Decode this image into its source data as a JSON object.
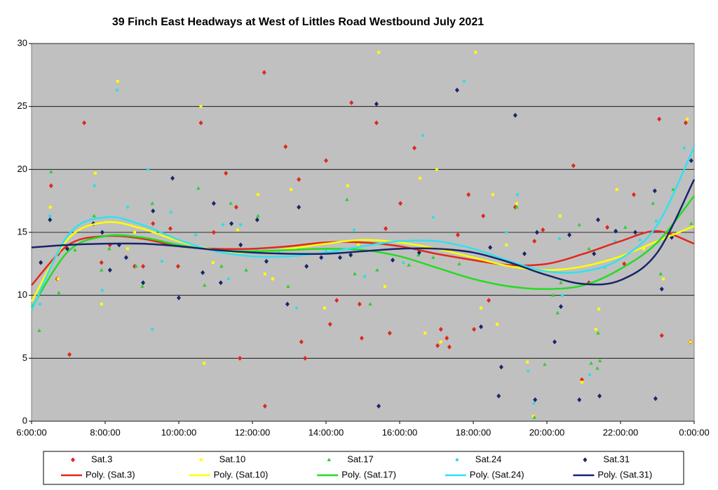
{
  "chart_data": {
    "type": "scatter",
    "title": "39 Finch East Headways at West of Littles Road Westbound July 2021",
    "xlim": [
      6,
      24
    ],
    "xticks": [
      {
        "value": 6,
        "label": "6:00:00"
      },
      {
        "value": 8,
        "label": "8:00:00"
      },
      {
        "value": 10,
        "label": "10:00:00"
      },
      {
        "value": 12,
        "label": "12:00:00"
      },
      {
        "value": 14,
        "label": "14:00:00"
      },
      {
        "value": 16,
        "label": "16:00:00"
      },
      {
        "value": 18,
        "label": "18:00:00"
      },
      {
        "value": 20,
        "label": "20:00:00"
      },
      {
        "value": 22,
        "label": "22:00:00"
      },
      {
        "value": 24,
        "label": "0:00:00"
      }
    ],
    "ylim": [
      0,
      30
    ],
    "yticks": [
      0,
      5,
      10,
      15,
      20,
      25,
      30
    ],
    "grid": true,
    "legend": "bottom",
    "series": [
      {
        "name": "Sat.3",
        "color": "#e3261c",
        "marker": "diamond",
        "x": [
          6.53,
          6.7,
          7.03,
          7.43,
          7.9,
          8.13,
          8.8,
          9.03,
          9.3,
          9.77,
          9.98,
          10.6,
          10.95,
          11.28,
          11.66,
          11.56,
          12.32,
          12.34,
          12.9,
          13.26,
          13.33,
          13.43,
          14,
          14.11,
          14.29,
          14.69,
          14.91,
          14.97,
          15.37,
          15.62,
          15.73,
          16.02,
          16.4,
          17.03,
          17.12,
          17.28,
          17.35,
          17.58,
          17.87,
          18.02,
          18.27,
          18.42,
          19.14,
          19.66,
          19.89,
          20.72,
          20.95,
          21.14,
          21.64,
          22.1,
          22.36,
          23.05,
          23.12,
          23.77,
          23.9
        ],
        "values": [
          18.7,
          11.3,
          5.3,
          23.7,
          12.6,
          14,
          12.3,
          12.3,
          15.7,
          15.3,
          12.3,
          23.7,
          15,
          19.7,
          5,
          17,
          27.7,
          1.2,
          21.8,
          19.2,
          6.3,
          5,
          20.7,
          7.7,
          9.6,
          25.3,
          9.3,
          6.6,
          23.7,
          15.3,
          7,
          17.3,
          21.7,
          6,
          7.3,
          6.6,
          5.9,
          14.8,
          18,
          7.3,
          16.3,
          9.6,
          17,
          14.3,
          15.2,
          20.3,
          3.3,
          11,
          15.4,
          12.5,
          18,
          24,
          6.8,
          23.7,
          6.3
        ]
      },
      {
        "name": "Sat.10",
        "color": "#ffff00",
        "marker": "square",
        "x": [
          6.51,
          6.72,
          7.73,
          7.9,
          8.34,
          8.61,
          8.8,
          10.6,
          10.69,
          10.93,
          11.6,
          12.15,
          12.34,
          12.55,
          13.05,
          13.96,
          14.59,
          14.88,
          15.43,
          15.6,
          16.55,
          16.69,
          17.01,
          17.12,
          18.06,
          18.21,
          18.53,
          18.65,
          18.9,
          19.18,
          19.47,
          19.64,
          20.36,
          20.95,
          21.33,
          21.41,
          21.9,
          22.63,
          23.16,
          23.81,
          23.9
        ],
        "values": [
          17,
          11.3,
          19.7,
          9.3,
          27,
          13.7,
          15,
          25,
          4.6,
          12.6,
          15.2,
          18,
          11.7,
          11.3,
          18.4,
          9,
          18.7,
          14,
          29.3,
          10.7,
          19.3,
          7,
          20,
          6.3,
          29.3,
          9,
          18,
          7.7,
          14,
          17.3,
          4.7,
          0.4,
          16.3,
          3.1,
          7.3,
          8.9,
          18.4,
          13.7,
          11.3,
          24,
          6.3
        ]
      },
      {
        "name": "Sat.17",
        "color": "#33cc33",
        "marker": "triangle",
        "x": [
          6.21,
          6.53,
          6.74,
          7.18,
          7.7,
          7.9,
          8.11,
          8.84,
          9.01,
          9.28,
          10.53,
          10.7,
          11.16,
          11.41,
          11.83,
          12.15,
          12.97,
          13.26,
          14.57,
          14.78,
          15.2,
          15.39,
          16.25,
          16.51,
          16.91,
          17.62,
          19.18,
          19.66,
          19.94,
          20.17,
          20.29,
          20.38,
          20.88,
          21.14,
          21.2,
          21.37,
          21.39,
          21.44,
          22.13,
          22.88,
          23.09,
          23.43,
          23.92
        ],
        "values": [
          7.2,
          19.8,
          10.2,
          13.6,
          16.3,
          12,
          13.7,
          12.3,
          10.7,
          17.3,
          18.5,
          10.8,
          12.3,
          17.3,
          12,
          16.3,
          10.7,
          13.7,
          17.6,
          11.7,
          9.3,
          12,
          12.4,
          13.2,
          13,
          12.5,
          17,
          0.3,
          4.5,
          10,
          8.6,
          11,
          15.6,
          13.7,
          4.6,
          4.2,
          7,
          4.8,
          15.4,
          17.3,
          11.7,
          18.4,
          15.7
        ]
      },
      {
        "name": "Sat.24",
        "color": "#33dddd",
        "marker": "circle",
        "x": [
          6.23,
          6.5,
          7.71,
          7.92,
          8.32,
          8.61,
          9.16,
          9.28,
          9.54,
          9.79,
          10.46,
          11.2,
          11.35,
          11.68,
          12.11,
          12.72,
          13.2,
          14,
          14.76,
          15.05,
          16.1,
          16.63,
          16.91,
          17.75,
          18.9,
          19.2,
          19.49,
          19.64,
          20.34,
          20.42,
          21.16,
          21.56,
          21.85,
          22.53,
          22.97,
          23.73
        ],
        "values": [
          9.3,
          16.3,
          18.7,
          10.4,
          26.3,
          17,
          20,
          7.3,
          12.7,
          16.6,
          14.8,
          15.6,
          11.3,
          15.6,
          13.6,
          13.4,
          9,
          13.5,
          15.2,
          11.5,
          12.6,
          22.7,
          16.2,
          27,
          15,
          18,
          4,
          1.4,
          14.5,
          10,
          3.7,
          12.2,
          14.3,
          14.4,
          15.9,
          21.7
        ]
      },
      {
        "name": "Sat.31",
        "color": "#17256b",
        "marker": "diamond",
        "x": [
          6.25,
          6.5,
          6.72,
          6.97,
          7.68,
          7.92,
          8.13,
          8.38,
          8.57,
          9.03,
          9.3,
          9.83,
          10,
          10.65,
          10.95,
          11.14,
          11.43,
          11.68,
          12.13,
          12.38,
          12.95,
          13.26,
          13.47,
          13.87,
          14.38,
          14.67,
          15.37,
          15.43,
          15.81,
          16.53,
          17.56,
          18.21,
          18.46,
          18.69,
          18.76,
          19.14,
          19.39,
          19.68,
          19.73,
          20.21,
          20.38,
          20.61,
          20.88,
          21.28,
          21.39,
          21.43,
          21.87,
          22.4,
          22.95,
          22.93,
          23.12,
          23.39,
          23.92
        ],
        "values": [
          12.6,
          16,
          13.3,
          13.7,
          15.7,
          15,
          12,
          14,
          13,
          11,
          16.7,
          19.3,
          9.8,
          11.8,
          17.3,
          11,
          15.7,
          14,
          16,
          12.7,
          9.3,
          17,
          12.3,
          13,
          13,
          13.2,
          25.2,
          1.2,
          12.8,
          13.4,
          26.3,
          7.5,
          13.8,
          2,
          4.3,
          24.3,
          13.3,
          1.7,
          15,
          6.3,
          9.1,
          14.8,
          1.7,
          13.3,
          16,
          2,
          15.1,
          15,
          1.8,
          18.3,
          10.5,
          14.6,
          20.7
        ]
      },
      {
        "name": "Poly. (Sat.3)",
        "color": "#e3261c",
        "line": true,
        "x": [
          6,
          7,
          8,
          9,
          10,
          11,
          12,
          13,
          14,
          15,
          16,
          17,
          18,
          19,
          20,
          21,
          22,
          23,
          24
        ],
        "values": [
          10.8,
          14,
          14.7,
          14.5,
          13.9,
          13.7,
          13.7,
          13.9,
          14.2,
          14.2,
          13.9,
          13.3,
          12.8,
          12.4,
          12.5,
          13.3,
          14.3,
          15.1,
          14.1
        ]
      },
      {
        "name": "Poly. (Sat.10)",
        "color": "#ffff00",
        "line": true,
        "x": [
          6,
          7,
          8,
          9,
          10,
          11,
          12,
          13,
          14,
          15,
          16,
          17,
          18,
          19,
          20,
          21,
          22,
          23,
          24
        ],
        "values": [
          9.5,
          14.5,
          15.8,
          15.3,
          14.3,
          13.6,
          13.4,
          13.7,
          14.1,
          14.4,
          14.2,
          13.7,
          13,
          12.3,
          12,
          12.3,
          13.1,
          14.3,
          15.5
        ]
      },
      {
        "name": "Poly. (Sat.17)",
        "color": "#22dd22",
        "line": true,
        "x": [
          6,
          7,
          8,
          9,
          10,
          11,
          12,
          13,
          14,
          15,
          16,
          17,
          18,
          19,
          20,
          21,
          22,
          23,
          24
        ],
        "values": [
          9,
          13.5,
          14.7,
          14.6,
          14,
          13.6,
          13.5,
          13.6,
          13.7,
          13.6,
          13.1,
          12.2,
          11.3,
          10.7,
          10.5,
          10.8,
          12.1,
          14.2,
          17.9
        ]
      },
      {
        "name": "Poly. (Sat.24)",
        "color": "#33e0f0",
        "line": true,
        "x": [
          6,
          7,
          8,
          9,
          10,
          11,
          12,
          13,
          14,
          15,
          16,
          17,
          18,
          19,
          20,
          21,
          22,
          23,
          24
        ],
        "values": [
          8.8,
          14.8,
          16.2,
          15.6,
          14.4,
          13.5,
          13.1,
          13.1,
          13.4,
          13.9,
          14.3,
          14.3,
          13.7,
          12.7,
          11.9,
          11.9,
          12.9,
          15.6,
          21.8
        ]
      },
      {
        "name": "Poly. (Sat.31)",
        "color": "#17256b",
        "line": true,
        "x": [
          6,
          7,
          8,
          9,
          10,
          11,
          12,
          13,
          14,
          15,
          16,
          17,
          18,
          19,
          20,
          21,
          22,
          23,
          24
        ],
        "values": [
          13.8,
          14,
          14.1,
          14.1,
          13.9,
          13.6,
          13.4,
          13.3,
          13.3,
          13.5,
          13.7,
          13.7,
          13.4,
          12.6,
          11.6,
          10.9,
          11.2,
          13.4,
          19.2
        ]
      }
    ]
  }
}
